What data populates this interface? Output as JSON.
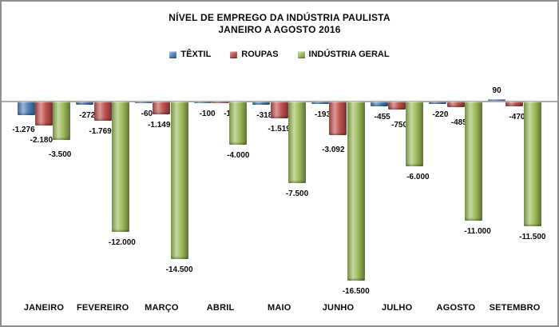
{
  "window": {
    "background": "#FFFFFF",
    "border_color": "#8E8E8E",
    "axis_color": "#ABABAB",
    "text_color": "#0A0A0A"
  },
  "chart_data": {
    "type": "bar",
    "title": "NÍVEL DE EMPREGO DA INDÚSTRIA PAULISTA",
    "subtitle": "JANEIRO A AGOSTO 2016",
    "categories": [
      "JANEIRO",
      "FEVEREIRO",
      "MARÇO",
      "ABRIL",
      "MAIO",
      "JUNHO",
      "JULHO",
      "AGOSTO",
      "SETEMBRO"
    ],
    "series": [
      {
        "name": "TÊXTIL",
        "color": "#4F81BD",
        "values": [
          -1276,
          -272,
          -60,
          -100,
          -318,
          -193,
          -455,
          -220,
          90
        ],
        "labels": [
          "-1.276",
          "-272",
          "-60",
          "-100",
          "-318",
          "-193",
          "-455",
          "-220",
          "90"
        ]
      },
      {
        "name": "ROUPAS",
        "color": "#C0504D",
        "values": [
          -2180,
          -1769,
          -1149,
          -112,
          -1519,
          -3092,
          -750,
          -485,
          -470
        ],
        "labels": [
          "-2.180",
          "-1.769",
          "-1.149",
          "-112",
          "-1.519",
          "-3.092",
          "-750",
          "-485",
          "-470"
        ]
      },
      {
        "name": "INDÚSTRIA GERAL",
        "color": "#9BBB59",
        "values": [
          -3500,
          -12000,
          -14500,
          -4000,
          -7500,
          -16500,
          -6000,
          -11000,
          -11500
        ],
        "labels": [
          "-3.500",
          "-12.000",
          "-14.500",
          "-4.000",
          "-7.500",
          "-16.500",
          "-6.000",
          "-11.000",
          "-11.500"
        ]
      }
    ],
    "ylim": [
      -17000,
      1000
    ],
    "grid": false,
    "value_axis_labels_visible": false,
    "legend_position": "top",
    "data_labels": "outside_end"
  }
}
